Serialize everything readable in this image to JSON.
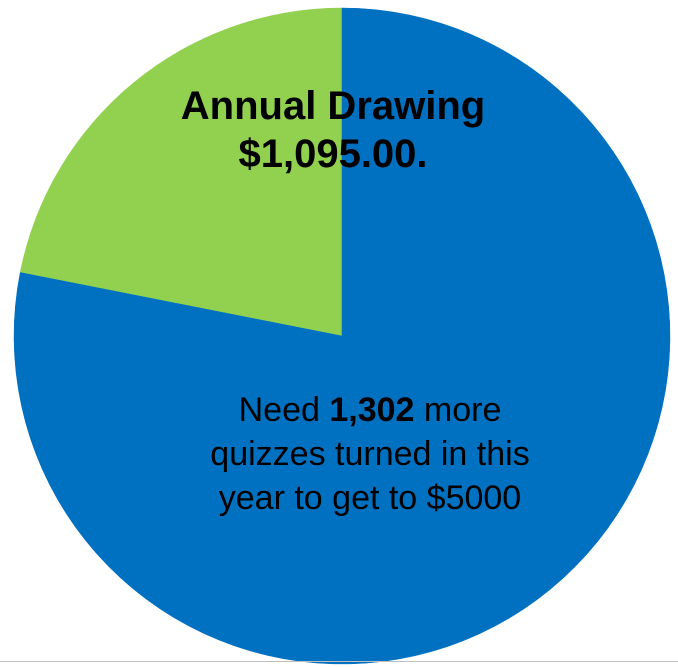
{
  "chart_data": {
    "type": "pie",
    "title": "",
    "slices": [
      {
        "value": 1095,
        "color": "#92d050"
      },
      {
        "value": 3905,
        "color": "#0070c0"
      }
    ],
    "total": 5000,
    "start_angle_deg": 0,
    "direction": "counterclockwise"
  },
  "labels": {
    "drawing_line1": "Annual Drawing",
    "drawing_line2": "$1,095.00.",
    "need_prefix": "Need",
    "need_count": "1,302",
    "need_suffix": "more",
    "need_line2": "quizzes turned in this",
    "need_line3": "year to get to $5000"
  }
}
